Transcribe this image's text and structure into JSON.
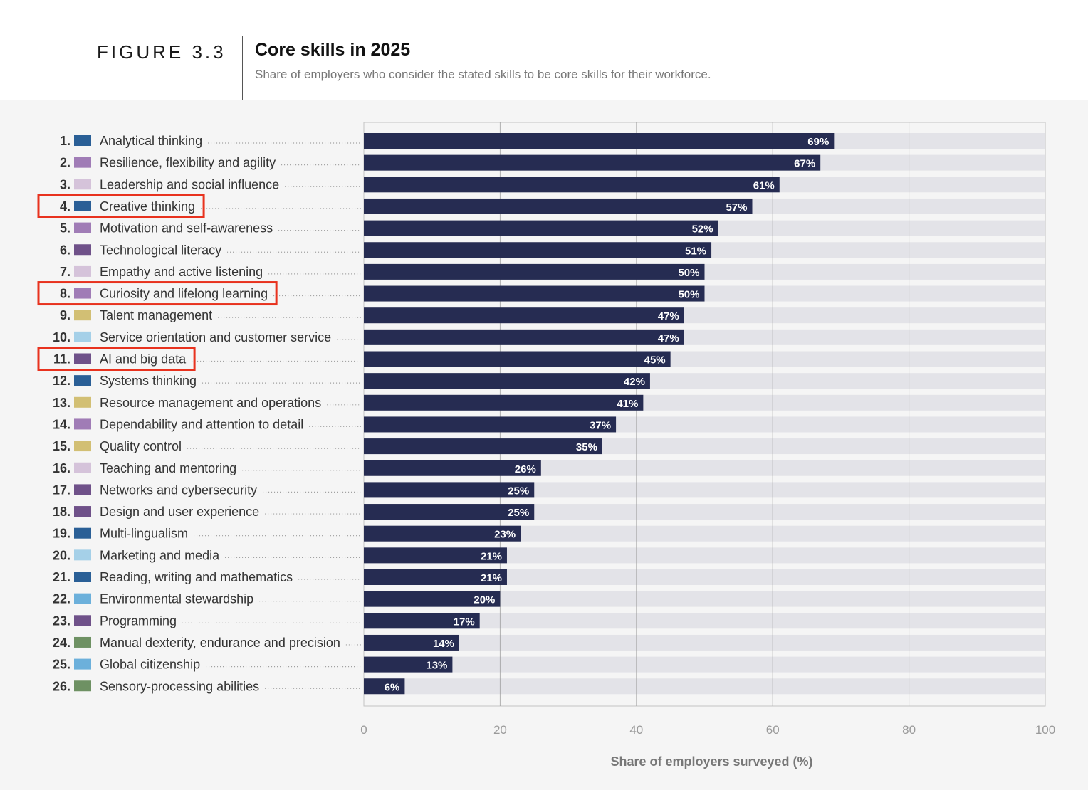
{
  "header": {
    "figure_label": "FIGURE 3.3",
    "title": "Core skills in 2025",
    "subtitle": "Share of employers who consider the stated skills to be core skills for their workforce."
  },
  "colors": {
    "bar": "#262c52",
    "track": "#e3e3e8",
    "highlight": "#e8321e",
    "gridline": "#999999",
    "cat_cognitive": "#2a5f96",
    "cat_self_efficacy": "#a07cb6",
    "cat_working_with_others": "#d5c3da",
    "cat_technology": "#6f5189",
    "cat_management": "#d2bf74",
    "cat_engagement": "#a5d0e8",
    "cat_ethics": "#6cb0db",
    "cat_physical": "#6e9163"
  },
  "chart_data": {
    "type": "bar",
    "orientation": "horizontal",
    "title": "Core skills in 2025",
    "subtitle": "Share of employers who consider the stated skills to be core skills for their workforce.",
    "xlabel": "Share of employers surveyed (%)",
    "ylabel": "",
    "xlim": [
      0,
      100
    ],
    "xticks": [
      "0",
      "20",
      "40",
      "60",
      "80",
      "100"
    ],
    "grid": true,
    "categories": [
      {
        "rank": "1.",
        "label": "Analytical thinking",
        "value": 69,
        "value_label": "69%",
        "swatch": "#2a5f96",
        "highlighted": false
      },
      {
        "rank": "2.",
        "label": "Resilience, flexibility and agility",
        "value": 67,
        "value_label": "67%",
        "swatch": "#a07cb6",
        "highlighted": false
      },
      {
        "rank": "3.",
        "label": "Leadership and social influence",
        "value": 61,
        "value_label": "61%",
        "swatch": "#d5c3da",
        "highlighted": false
      },
      {
        "rank": "4.",
        "label": "Creative thinking",
        "value": 57,
        "value_label": "57%",
        "swatch": "#2a5f96",
        "highlighted": true
      },
      {
        "rank": "5.",
        "label": "Motivation and self-awareness",
        "value": 52,
        "value_label": "52%",
        "swatch": "#a07cb6",
        "highlighted": false
      },
      {
        "rank": "6.",
        "label": "Technological literacy",
        "value": 51,
        "value_label": "51%",
        "swatch": "#6f5189",
        "highlighted": false
      },
      {
        "rank": "7.",
        "label": "Empathy and active listening",
        "value": 50,
        "value_label": "50%",
        "swatch": "#d5c3da",
        "highlighted": false
      },
      {
        "rank": "8.",
        "label": "Curiosity and lifelong learning",
        "value": 50,
        "value_label": "50%",
        "swatch": "#a07cb6",
        "highlighted": true
      },
      {
        "rank": "9.",
        "label": "Talent management",
        "value": 47,
        "value_label": "47%",
        "swatch": "#d2bf74",
        "highlighted": false
      },
      {
        "rank": "10.",
        "label": "Service orientation and customer service",
        "value": 47,
        "value_label": "47%",
        "swatch": "#a5d0e8",
        "highlighted": false
      },
      {
        "rank": "11.",
        "label": "AI and big data",
        "value": 45,
        "value_label": "45%",
        "swatch": "#6f5189",
        "highlighted": true
      },
      {
        "rank": "12.",
        "label": "Systems thinking",
        "value": 42,
        "value_label": "42%",
        "swatch": "#2a5f96",
        "highlighted": false
      },
      {
        "rank": "13.",
        "label": "Resource management and operations",
        "value": 41,
        "value_label": "41%",
        "swatch": "#d2bf74",
        "highlighted": false
      },
      {
        "rank": "14.",
        "label": "Dependability and attention to detail",
        "value": 37,
        "value_label": "37%",
        "swatch": "#a07cb6",
        "highlighted": false
      },
      {
        "rank": "15.",
        "label": "Quality control",
        "value": 35,
        "value_label": "35%",
        "swatch": "#d2bf74",
        "highlighted": false
      },
      {
        "rank": "16.",
        "label": "Teaching and mentoring",
        "value": 26,
        "value_label": "26%",
        "swatch": "#d5c3da",
        "highlighted": false
      },
      {
        "rank": "17.",
        "label": "Networks and cybersecurity",
        "value": 25,
        "value_label": "25%",
        "swatch": "#6f5189",
        "highlighted": false
      },
      {
        "rank": "18.",
        "label": "Design and user experience",
        "value": 25,
        "value_label": "25%",
        "swatch": "#6f5189",
        "highlighted": false
      },
      {
        "rank": "19.",
        "label": "Multi-lingualism",
        "value": 23,
        "value_label": "23%",
        "swatch": "#2a5f96",
        "highlighted": false
      },
      {
        "rank": "20.",
        "label": "Marketing and media",
        "value": 21,
        "value_label": "21%",
        "swatch": "#a5d0e8",
        "highlighted": false
      },
      {
        "rank": "21.",
        "label": "Reading, writing and mathematics",
        "value": 21,
        "value_label": "21%",
        "swatch": "#2a5f96",
        "highlighted": false
      },
      {
        "rank": "22.",
        "label": "Environmental stewardship",
        "value": 20,
        "value_label": "20%",
        "swatch": "#6cb0db",
        "highlighted": false
      },
      {
        "rank": "23.",
        "label": "Programming",
        "value": 17,
        "value_label": "17%",
        "swatch": "#6f5189",
        "highlighted": false
      },
      {
        "rank": "24.",
        "label": "Manual dexterity, endurance and precision",
        "value": 14,
        "value_label": "14%",
        "swatch": "#6e9163",
        "highlighted": false
      },
      {
        "rank": "25.",
        "label": "Global citizenship",
        "value": 13,
        "value_label": "13%",
        "swatch": "#6cb0db",
        "highlighted": false
      },
      {
        "rank": "26.",
        "label": "Sensory-processing abilities",
        "value": 6,
        "value_label": "6%",
        "swatch": "#6e9163",
        "highlighted": false
      }
    ]
  }
}
